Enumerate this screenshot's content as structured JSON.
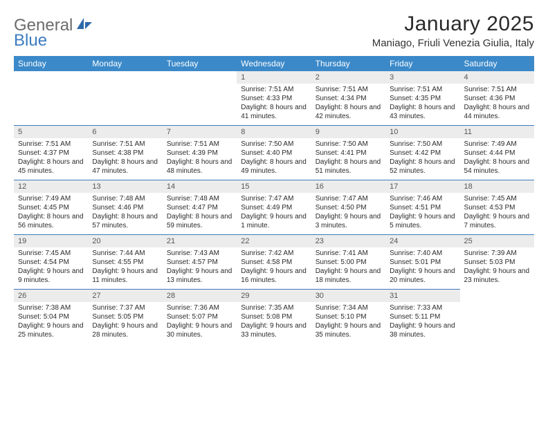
{
  "logo": {
    "line1": "General",
    "line2": "Blue"
  },
  "title": "January 2025",
  "location": "Maniago, Friuli Venezia Giulia, Italy",
  "colors": {
    "header_bg": "#3b89c9",
    "header_text": "#ffffff",
    "daynum_bg": "#ececec",
    "row_border": "#3b7bbf",
    "logo_gray": "#6b6b6b",
    "logo_blue": "#3b7bbf"
  },
  "day_headers": [
    "Sunday",
    "Monday",
    "Tuesday",
    "Wednesday",
    "Thursday",
    "Friday",
    "Saturday"
  ],
  "weeks": [
    [
      null,
      null,
      null,
      {
        "n": "1",
        "sr": "7:51 AM",
        "ss": "4:33 PM",
        "dl": "8 hours and 41 minutes."
      },
      {
        "n": "2",
        "sr": "7:51 AM",
        "ss": "4:34 PM",
        "dl": "8 hours and 42 minutes."
      },
      {
        "n": "3",
        "sr": "7:51 AM",
        "ss": "4:35 PM",
        "dl": "8 hours and 43 minutes."
      },
      {
        "n": "4",
        "sr": "7:51 AM",
        "ss": "4:36 PM",
        "dl": "8 hours and 44 minutes."
      }
    ],
    [
      {
        "n": "5",
        "sr": "7:51 AM",
        "ss": "4:37 PM",
        "dl": "8 hours and 45 minutes."
      },
      {
        "n": "6",
        "sr": "7:51 AM",
        "ss": "4:38 PM",
        "dl": "8 hours and 47 minutes."
      },
      {
        "n": "7",
        "sr": "7:51 AM",
        "ss": "4:39 PM",
        "dl": "8 hours and 48 minutes."
      },
      {
        "n": "8",
        "sr": "7:50 AM",
        "ss": "4:40 PM",
        "dl": "8 hours and 49 minutes."
      },
      {
        "n": "9",
        "sr": "7:50 AM",
        "ss": "4:41 PM",
        "dl": "8 hours and 51 minutes."
      },
      {
        "n": "10",
        "sr": "7:50 AM",
        "ss": "4:42 PM",
        "dl": "8 hours and 52 minutes."
      },
      {
        "n": "11",
        "sr": "7:49 AM",
        "ss": "4:44 PM",
        "dl": "8 hours and 54 minutes."
      }
    ],
    [
      {
        "n": "12",
        "sr": "7:49 AM",
        "ss": "4:45 PM",
        "dl": "8 hours and 56 minutes."
      },
      {
        "n": "13",
        "sr": "7:48 AM",
        "ss": "4:46 PM",
        "dl": "8 hours and 57 minutes."
      },
      {
        "n": "14",
        "sr": "7:48 AM",
        "ss": "4:47 PM",
        "dl": "8 hours and 59 minutes."
      },
      {
        "n": "15",
        "sr": "7:47 AM",
        "ss": "4:49 PM",
        "dl": "9 hours and 1 minute."
      },
      {
        "n": "16",
        "sr": "7:47 AM",
        "ss": "4:50 PM",
        "dl": "9 hours and 3 minutes."
      },
      {
        "n": "17",
        "sr": "7:46 AM",
        "ss": "4:51 PM",
        "dl": "9 hours and 5 minutes."
      },
      {
        "n": "18",
        "sr": "7:45 AM",
        "ss": "4:53 PM",
        "dl": "9 hours and 7 minutes."
      }
    ],
    [
      {
        "n": "19",
        "sr": "7:45 AM",
        "ss": "4:54 PM",
        "dl": "9 hours and 9 minutes."
      },
      {
        "n": "20",
        "sr": "7:44 AM",
        "ss": "4:55 PM",
        "dl": "9 hours and 11 minutes."
      },
      {
        "n": "21",
        "sr": "7:43 AM",
        "ss": "4:57 PM",
        "dl": "9 hours and 13 minutes."
      },
      {
        "n": "22",
        "sr": "7:42 AM",
        "ss": "4:58 PM",
        "dl": "9 hours and 16 minutes."
      },
      {
        "n": "23",
        "sr": "7:41 AM",
        "ss": "5:00 PM",
        "dl": "9 hours and 18 minutes."
      },
      {
        "n": "24",
        "sr": "7:40 AM",
        "ss": "5:01 PM",
        "dl": "9 hours and 20 minutes."
      },
      {
        "n": "25",
        "sr": "7:39 AM",
        "ss": "5:03 PM",
        "dl": "9 hours and 23 minutes."
      }
    ],
    [
      {
        "n": "26",
        "sr": "7:38 AM",
        "ss": "5:04 PM",
        "dl": "9 hours and 25 minutes."
      },
      {
        "n": "27",
        "sr": "7:37 AM",
        "ss": "5:05 PM",
        "dl": "9 hours and 28 minutes."
      },
      {
        "n": "28",
        "sr": "7:36 AM",
        "ss": "5:07 PM",
        "dl": "9 hours and 30 minutes."
      },
      {
        "n": "29",
        "sr": "7:35 AM",
        "ss": "5:08 PM",
        "dl": "9 hours and 33 minutes."
      },
      {
        "n": "30",
        "sr": "7:34 AM",
        "ss": "5:10 PM",
        "dl": "9 hours and 35 minutes."
      },
      {
        "n": "31",
        "sr": "7:33 AM",
        "ss": "5:11 PM",
        "dl": "9 hours and 38 minutes."
      },
      null
    ]
  ],
  "labels": {
    "sunrise": "Sunrise:",
    "sunset": "Sunset:",
    "daylight": "Daylight:"
  }
}
